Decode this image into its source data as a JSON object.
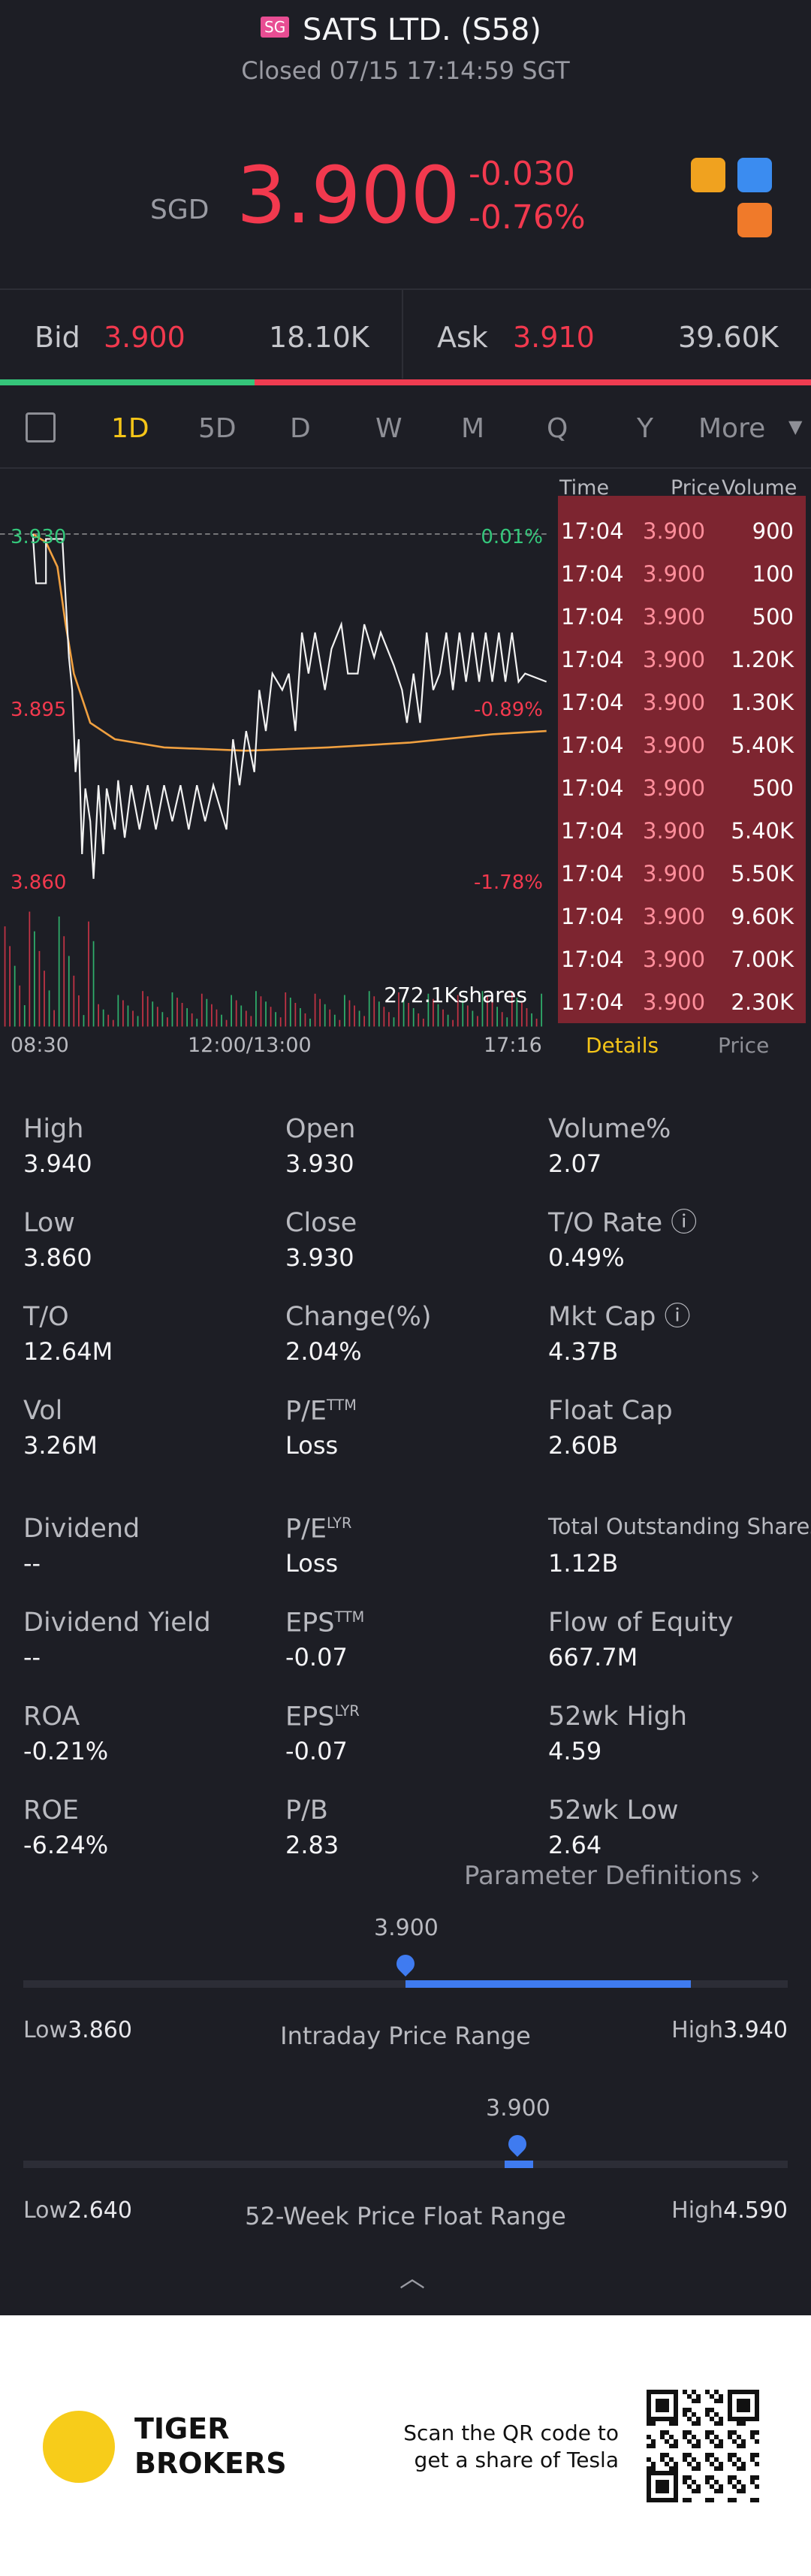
{
  "header": {
    "badge": "SG",
    "title": "SATS LTD. (S58)",
    "status": "Closed 07/15 17:14:59 SGT"
  },
  "quote": {
    "currency": "SGD",
    "price": "3.900",
    "change": "-0.030",
    "change_pct": "-0.76%"
  },
  "bidask": {
    "bid_label": "Bid",
    "bid": "3.900",
    "bid_vol": "18.10K",
    "ask_label": "Ask",
    "ask": "3.910",
    "ask_vol": "39.60K"
  },
  "tabs": [
    "1D",
    "5D",
    "D",
    "W",
    "M",
    "Q",
    "Y",
    "More"
  ],
  "chart": {
    "levels": [
      {
        "price": "3.930",
        "pct": "0.01%"
      },
      {
        "price": "3.895",
        "pct": "-0.89%"
      },
      {
        "price": "3.860",
        "pct": "-1.78%"
      }
    ],
    "volume": "272.1Kshares",
    "times": [
      "08:30",
      "12:00/13:00",
      "17:16"
    ]
  },
  "trades": {
    "headers": [
      "Time",
      "Price",
      "Volume"
    ],
    "rows": [
      [
        "17:04",
        "3.900",
        "900"
      ],
      [
        "17:04",
        "3.900",
        "100"
      ],
      [
        "17:04",
        "3.900",
        "500"
      ],
      [
        "17:04",
        "3.900",
        "1.20K"
      ],
      [
        "17:04",
        "3.900",
        "1.30K"
      ],
      [
        "17:04",
        "3.900",
        "5.40K"
      ],
      [
        "17:04",
        "3.900",
        "500"
      ],
      [
        "17:04",
        "3.900",
        "5.40K"
      ],
      [
        "17:04",
        "3.900",
        "5.50K"
      ],
      [
        "17:04",
        "3.900",
        "9.60K"
      ],
      [
        "17:04",
        "3.900",
        "7.00K"
      ],
      [
        "17:04",
        "3.900",
        "2.30K"
      ]
    ],
    "tabs": [
      "Details",
      "Price"
    ]
  },
  "stats": [
    {
      "label": "High",
      "value": "3.940"
    },
    {
      "label": "Open",
      "value": "3.930"
    },
    {
      "label": "Volume%",
      "value": "2.07"
    },
    {
      "label": "Low",
      "value": "3.860"
    },
    {
      "label": "Close",
      "value": "3.930"
    },
    {
      "label": "T/O Rate",
      "value": "0.49%"
    },
    {
      "label": "T/O",
      "value": "12.64M"
    },
    {
      "label": "Change(%)",
      "value": "2.04%"
    },
    {
      "label": "Mkt Cap",
      "value": "4.37B"
    },
    {
      "label": "Vol",
      "value": "3.26M"
    },
    {
      "label": "P/E",
      "sup": "TTM",
      "value": "Loss"
    },
    {
      "label": "Float Cap",
      "value": "2.60B"
    },
    {
      "label": "Dividend",
      "value": "--"
    },
    {
      "label": "P/E",
      "sup": "LYR",
      "value": "Loss"
    },
    {
      "label": "Total Outstanding Shares",
      "value": "1.12B"
    },
    {
      "label": "Dividend Yield",
      "value": "--"
    },
    {
      "label": "EPS",
      "sup": "TTM",
      "value": "-0.07"
    },
    {
      "label": "Flow of Equity",
      "value": "667.7M"
    },
    {
      "label": "ROA",
      "value": "-0.21%"
    },
    {
      "label": "EPS",
      "sup": "LYR",
      "value": "-0.07"
    },
    {
      "label": "52wk High",
      "value": "4.59"
    },
    {
      "label": "ROE",
      "value": "-6.24%"
    },
    {
      "label": "P/B",
      "value": "2.83"
    },
    {
      "label": "52wk Low",
      "value": "2.64"
    }
  ],
  "param_link": "Parameter Definitions",
  "ranges": [
    {
      "current": "3.900",
      "low_label": "Low",
      "low": "3.860",
      "title": "Intraday Price Range",
      "high_label": "High",
      "high": "3.940"
    },
    {
      "current": "3.900",
      "low_label": "Low",
      "low": "2.640",
      "title": "52-Week Price Float Range",
      "high_label": "High",
      "high": "4.590"
    }
  ],
  "footer": {
    "brand": [
      "TIGER",
      "BROKERS"
    ],
    "qr_text": [
      "Scan the QR code to",
      "get a share of Tesla"
    ]
  }
}
